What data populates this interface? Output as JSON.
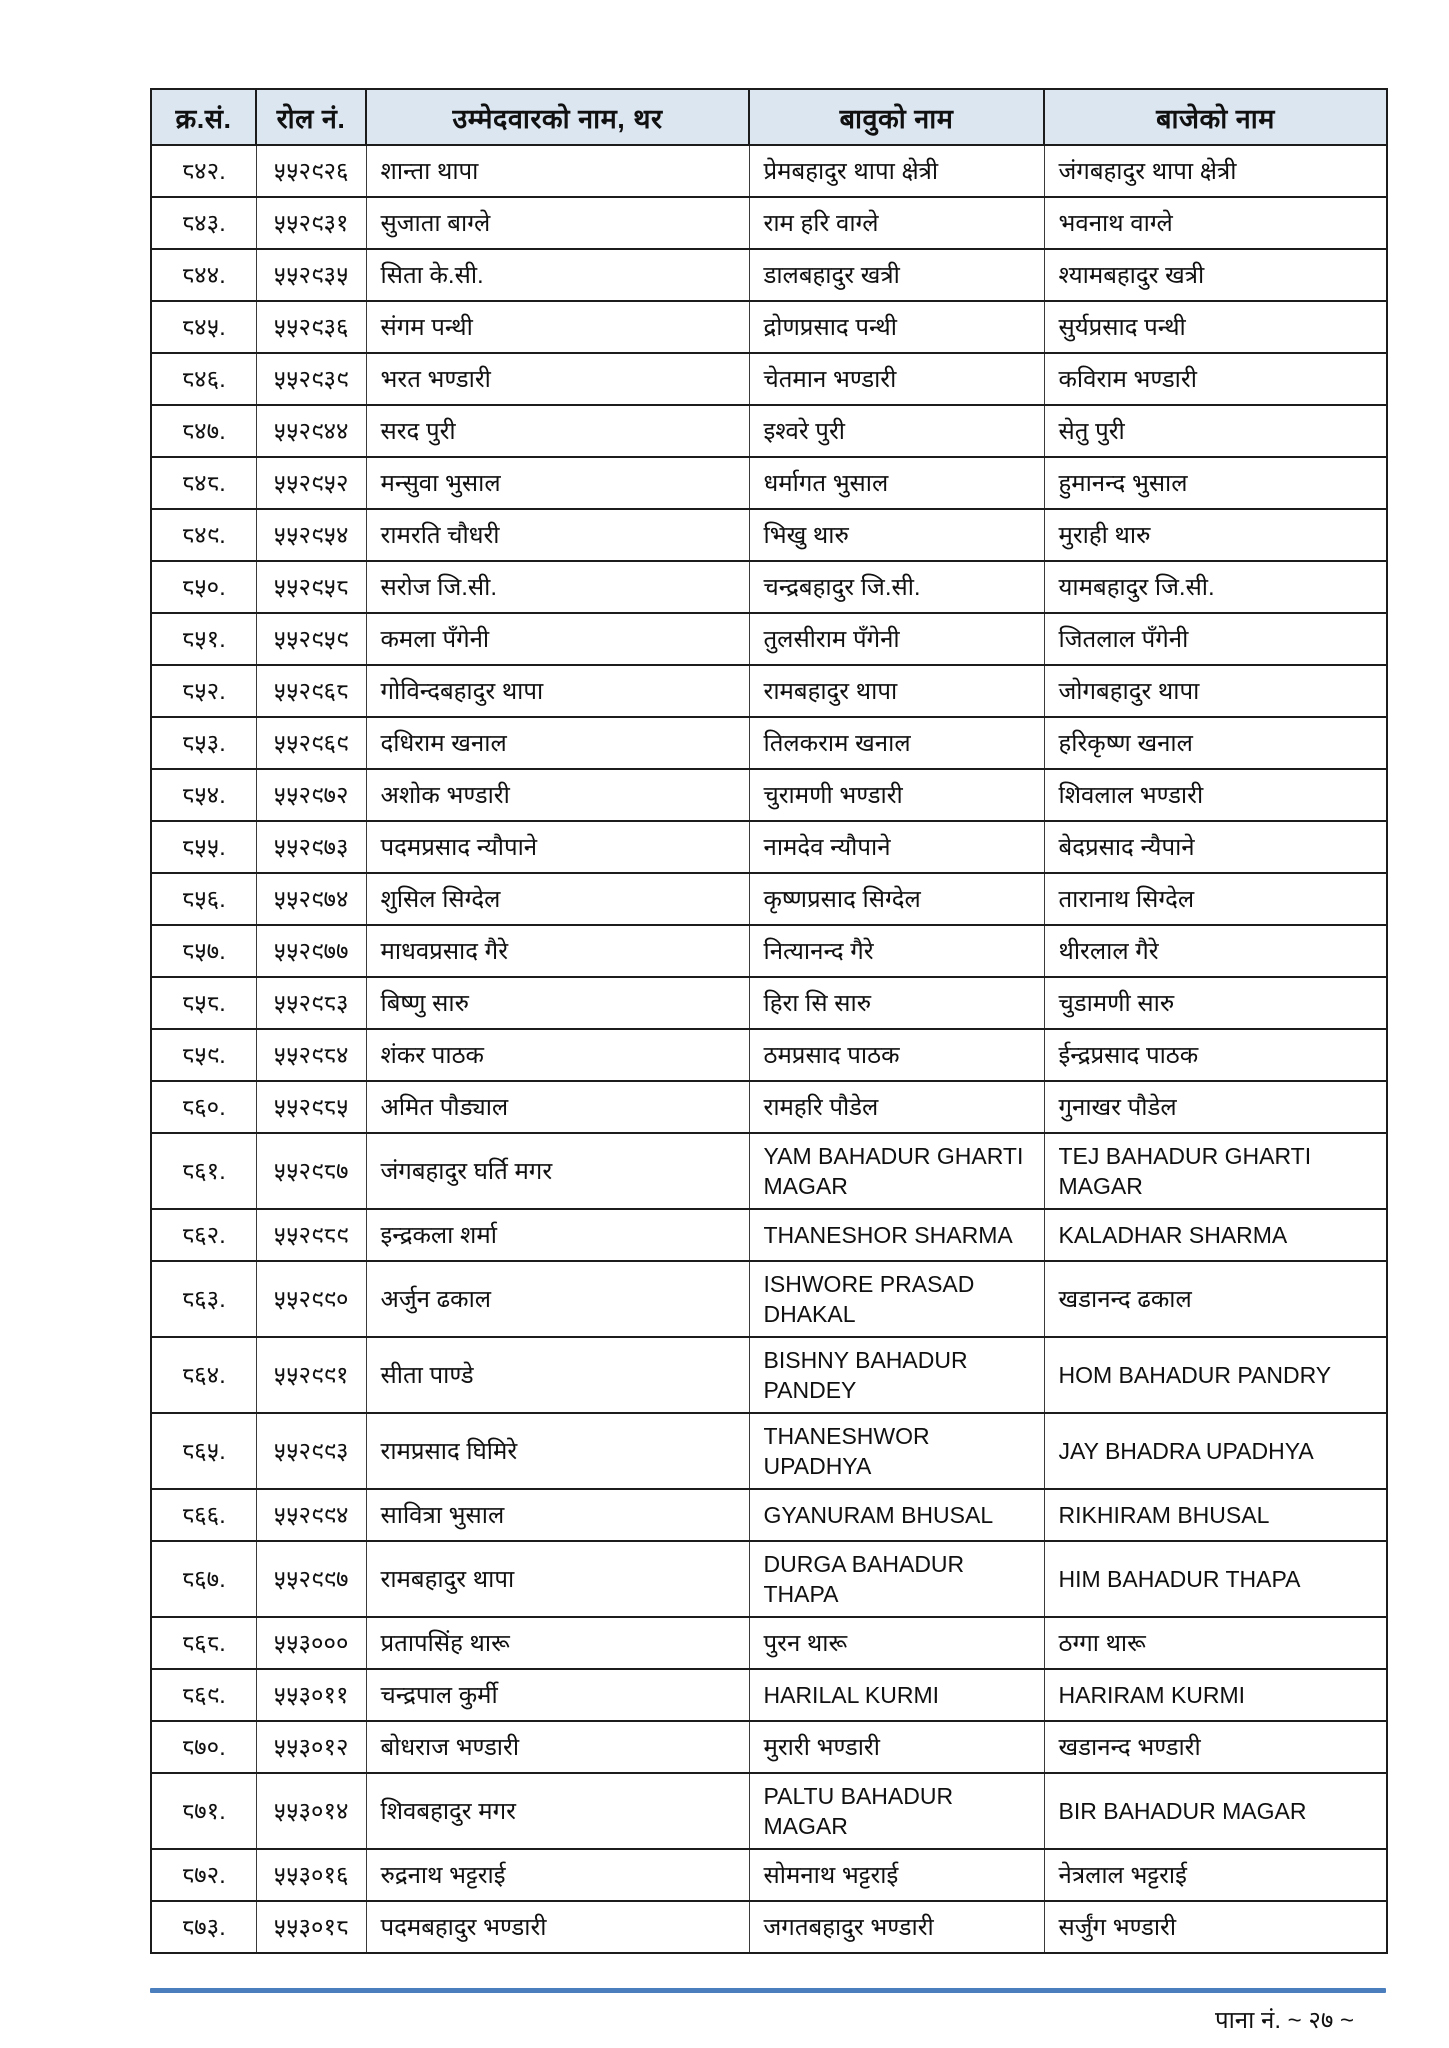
{
  "page": {
    "footer_label": "पाना नं.  ~ २७ ~",
    "colors": {
      "header_bg": "#dce6f1",
      "accent_line": "#4a7ebc",
      "page_bg": "#ffffff",
      "border": "#1c1c1c"
    }
  },
  "table": {
    "headers": [
      "क्र.सं.",
      "रोल नं.",
      "उम्मेदवारको नाम, थर",
      "बावुको नाम",
      "बाजेको नाम"
    ],
    "rows": [
      {
        "sn": "८४२.",
        "roll": "५५२९२६",
        "candidate": "शान्ता थापा",
        "father": "प्रेमबहादुर थापा क्षेत्री",
        "grandfather": "जंगबहादुर थापा क्षेत्री"
      },
      {
        "sn": "८४३.",
        "roll": "५५२९३१",
        "candidate": "सुजाता बाग्ले",
        "father": "राम हरि वाग्ले",
        "grandfather": "भवनाथ वाग्ले"
      },
      {
        "sn": "८४४.",
        "roll": "५५२९३५",
        "candidate": "सिता के.सी.",
        "father": "डालबहादुर खत्री",
        "grandfather": "श्यामबहादुर खत्री"
      },
      {
        "sn": "८४५.",
        "roll": "५५२९३६",
        "candidate": "संगम पन्थी",
        "father": "द्रोणप्रसाद पन्थी",
        "grandfather": "सुर्यप्रसाद पन्थी"
      },
      {
        "sn": "८४६.",
        "roll": "५५२९३९",
        "candidate": "भरत भण्डारी",
        "father": "चेतमान भण्डारी",
        "grandfather": "कविराम भण्डारी"
      },
      {
        "sn": "८४७.",
        "roll": "५५२९४४",
        "candidate": "सरद पुरी",
        "father": "इश्वरे पुरी",
        "grandfather": "सेतु पुरी"
      },
      {
        "sn": "८४८.",
        "roll": "५५२९५२",
        "candidate": "मन्सुवा भुसाल",
        "father": "धर्मागत भुसाल",
        "grandfather": "हुमानन्द भुसाल"
      },
      {
        "sn": "८४९.",
        "roll": "५५२९५४",
        "candidate": "रामरति चौधरी",
        "father": "भिखु थारु",
        "grandfather": "मुराही थारु"
      },
      {
        "sn": "८५०.",
        "roll": "५५२९५८",
        "candidate": "सरोज जि.सी.",
        "father": "चन्द्रबहादुर जि.सी.",
        "grandfather": "यामबहादुर जि.सी."
      },
      {
        "sn": "८५१.",
        "roll": "५५२९५९",
        "candidate": "कमला पँगेनी",
        "father": "तुलसीराम पँगेनी",
        "grandfather": "जितलाल पँगेनी"
      },
      {
        "sn": "८५२.",
        "roll": "५५२९६८",
        "candidate": "गोविन्दबहादुर थापा",
        "father": "रामबहादुर थापा",
        "grandfather": "जोगबहादुर थापा"
      },
      {
        "sn": "८५३.",
        "roll": "५५२९६९",
        "candidate": "दधिराम खनाल",
        "father": "तिलकराम खनाल",
        "grandfather": "हरिकृष्ण खनाल"
      },
      {
        "sn": "८५४.",
        "roll": "५५२९७२",
        "candidate": "अशोक भण्डारी",
        "father": "चुरामणी भण्डारी",
        "grandfather": "शिवलाल भण्डारी"
      },
      {
        "sn": "८५५.",
        "roll": "५५२९७३",
        "candidate": "पदमप्रसाद न्यौपाने",
        "father": "नामदेव न्यौपाने",
        "grandfather": "बेदप्रसाद न्यैपाने"
      },
      {
        "sn": "८५६.",
        "roll": "५५२९७४",
        "candidate": "शुसिल सिग्देल",
        "father": "कृष्णप्रसाद सिग्देल",
        "grandfather": "तारानाथ सिग्देल"
      },
      {
        "sn": "८५७.",
        "roll": "५५२९७७",
        "candidate": "माधवप्रसाद गैरे",
        "father": "नित्यानन्द गैरे",
        "grandfather": "थीरलाल गैरे"
      },
      {
        "sn": "८५८.",
        "roll": "५५२९८३",
        "candidate": "बिष्णु सारु",
        "father": "हिरा सि सारु",
        "grandfather": "चुडामणी सारु"
      },
      {
        "sn": "८५९.",
        "roll": "५५२९८४",
        "candidate": "शंकर पाठक",
        "father": "ठमप्रसाद पाठक",
        "grandfather": "ईन्द्रप्रसाद पाठक"
      },
      {
        "sn": "८६०.",
        "roll": "५५२९८५",
        "candidate": "अमित पौड्याल",
        "father": "रामहरि पौडेल",
        "grandfather": "गुनाखर पौडेल"
      },
      {
        "sn": "८६१.",
        "roll": "५५२९८७",
        "candidate": "जंगबहादुर घर्ति मगर",
        "father": "YAM BAHADUR GHARTI MAGAR",
        "grandfather": "TEJ BAHADUR GHARTI MAGAR",
        "father_latin": true,
        "grandfather_latin": true
      },
      {
        "sn": "८६२.",
        "roll": "५५२९८९",
        "candidate": "इन्द्रकला शर्मा",
        "father": "THANESHOR SHARMA",
        "grandfather": "KALADHAR SHARMA",
        "father_latin": true,
        "grandfather_latin": true
      },
      {
        "sn": "८६३.",
        "roll": "५५२९९०",
        "candidate": "अर्जुन ढकाल",
        "father": "ISHWORE PRASAD DHAKAL",
        "grandfather": "खडानन्द ढकाल",
        "father_latin": true
      },
      {
        "sn": "८६४.",
        "roll": "५५२९९१",
        "candidate": "सीता पाण्डे",
        "father": "BISHNY BAHADUR PANDEY",
        "grandfather": "HOM BAHADUR PANDRY",
        "father_latin": true,
        "grandfather_latin": true
      },
      {
        "sn": "८६५.",
        "roll": "५५२९९३",
        "candidate": "रामप्रसाद घिमिरे",
        "father": "THANESHWOR UPADHYA",
        "grandfather": "JAY BHADRA UPADHYA",
        "father_latin": true,
        "grandfather_latin": true
      },
      {
        "sn": "८६६.",
        "roll": "५५२९९४",
        "candidate": "सावित्रा भुसाल",
        "father": "GYANURAM BHUSAL",
        "grandfather": "RIKHIRAM BHUSAL",
        "father_latin": true,
        "grandfather_latin": true
      },
      {
        "sn": "८६७.",
        "roll": "५५२९९७",
        "candidate": "रामबहादुर थापा",
        "father": "DURGA BAHADUR THAPA",
        "grandfather": "HIM BAHADUR THAPA",
        "father_latin": true,
        "grandfather_latin": true
      },
      {
        "sn": "८६८.",
        "roll": "५५३०००",
        "candidate": "प्रतापसिंह थारू",
        "father": "पुरन थारू",
        "grandfather": "ठग्गा थारू"
      },
      {
        "sn": "८६९.",
        "roll": "५५३०११",
        "candidate": "चन्द्रपाल कुर्मी",
        "father": "HARILAL KURMI",
        "grandfather": "HARIRAM KURMI",
        "father_latin": true,
        "grandfather_latin": true
      },
      {
        "sn": "८७०.",
        "roll": "५५३०१२",
        "candidate": "बोधराज भण्डारी",
        "father": "मुरारी भण्डारी",
        "grandfather": "खडानन्द भण्डारी"
      },
      {
        "sn": "८७१.",
        "roll": "५५३०१४",
        "candidate": "शिवबहादुर मगर",
        "father": "PALTU BAHADUR MAGAR",
        "grandfather": "BIR BAHADUR MAGAR",
        "father_latin": true,
        "grandfather_latin": true
      },
      {
        "sn": "८७२.",
        "roll": "५५३०१६",
        "candidate": "रुद्रनाथ भट्टराई",
        "father": "सोमनाथ भट्टराई",
        "grandfather": "नेत्रलाल भट्टराई"
      },
      {
        "sn": "८७३.",
        "roll": "५५३०१८",
        "candidate": "पदमबहादुर भण्डारी",
        "father": "जगतबहादुर भण्डारी",
        "grandfather": "सर्जुंग भण्डारी"
      }
    ]
  }
}
